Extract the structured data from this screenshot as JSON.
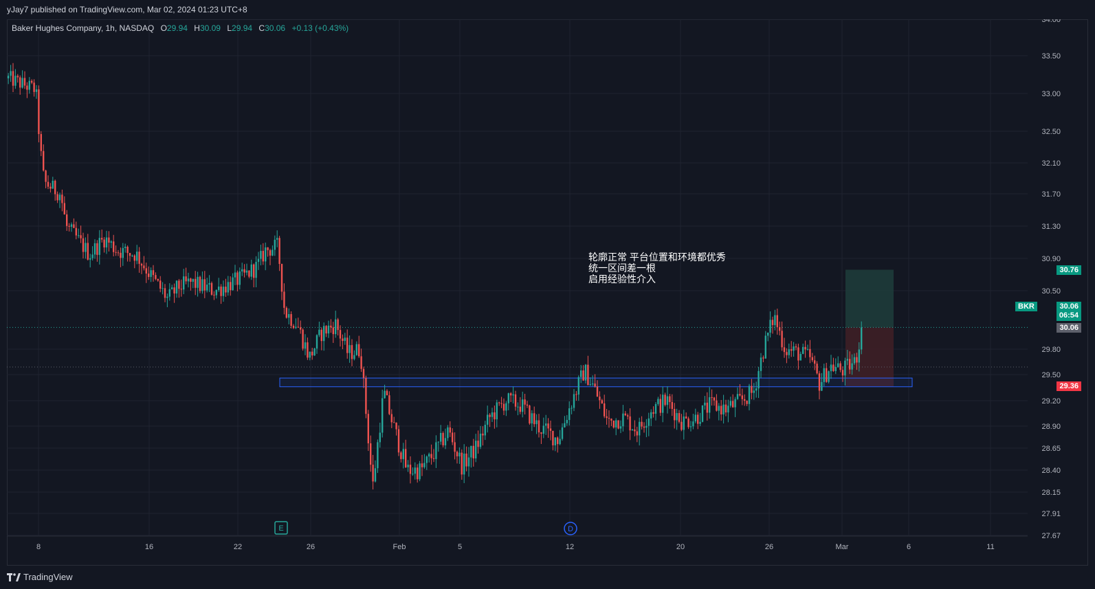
{
  "header": {
    "publisher": "yJay7 published on TradingView.com, Mar 02, 2024 01:23 UTC+8"
  },
  "legend": {
    "symbol": "Baker Hughes Company, 1h, NASDAQ",
    "o_label": "O",
    "o": "29.94",
    "h_label": "H",
    "h": "30.09",
    "l_label": "L",
    "l": "29.94",
    "c_label": "C",
    "c": "30.06",
    "change": "+0.13 (+0.43%)"
  },
  "annotation": {
    "lines": [
      "轮廓正常 平台位置和环境都优秀",
      "统一区间差一根",
      "启用经验性介入"
    ]
  },
  "price_tags": {
    "target": "30.76",
    "ticker": "BKR",
    "last": "30.06",
    "countdown": "06:54",
    "current_marker": "30.06",
    "stop": "29.36"
  },
  "events": {
    "earnings": "E",
    "dividend": "D"
  },
  "footer": {
    "brand": "TradingView"
  },
  "colors": {
    "background": "#131722",
    "up": "#26a69a",
    "down": "#ef5350",
    "zone_border": "#2962ff",
    "target_fill": "#1e3b3a",
    "stop_fill": "#3e1f26"
  },
  "chart_data": {
    "type": "candlestick",
    "y_ticks": [
      "34.00",
      "33.50",
      "33.00",
      "32.50",
      "32.10",
      "31.70",
      "31.30",
      "30.90",
      "30.50",
      "29.80",
      "29.50",
      "29.20",
      "28.90",
      "28.65",
      "28.40",
      "28.15",
      "27.91",
      "27.67"
    ],
    "x_ticks": [
      "8",
      "16",
      "22",
      "26",
      "Feb",
      "5",
      "12",
      "20",
      "26",
      "Mar",
      "6",
      "11"
    ],
    "ylim": [
      27.67,
      34.0
    ],
    "support_zone": {
      "low": 29.36,
      "high": 29.46
    },
    "position": {
      "entry": 30.06,
      "target": 30.76,
      "stop": 29.36
    },
    "anchors": [
      [
        0,
        33.2
      ],
      [
        40,
        33.05
      ],
      [
        46,
        32.3
      ],
      [
        52,
        31.85
      ],
      [
        76,
        31.7
      ],
      [
        84,
        31.3
      ],
      [
        104,
        31.1
      ],
      [
        118,
        30.95
      ],
      [
        140,
        31.15
      ],
      [
        158,
        31.0
      ],
      [
        186,
        30.95
      ],
      [
        206,
        30.7
      ],
      [
        232,
        30.4
      ],
      [
        248,
        30.55
      ],
      [
        266,
        30.6
      ],
      [
        300,
        30.5
      ],
      [
        338,
        30.65
      ],
      [
        362,
        30.8
      ],
      [
        374,
        31.0
      ],
      [
        392,
        31.05
      ],
      [
        402,
        30.25
      ],
      [
        420,
        30.1
      ],
      [
        438,
        29.7
      ],
      [
        456,
        30.0
      ],
      [
        476,
        30.1
      ],
      [
        494,
        29.75
      ],
      [
        512,
        29.8
      ],
      [
        530,
        28.2
      ],
      [
        546,
        29.3
      ],
      [
        562,
        28.85
      ],
      [
        580,
        28.4
      ],
      [
        600,
        28.4
      ],
      [
        620,
        28.6
      ],
      [
        640,
        28.85
      ],
      [
        660,
        28.45
      ],
      [
        680,
        28.65
      ],
      [
        700,
        29.0
      ],
      [
        724,
        29.2
      ],
      [
        746,
        29.15
      ],
      [
        770,
        28.9
      ],
      [
        800,
        28.75
      ],
      [
        820,
        29.2
      ],
      [
        838,
        29.55
      ],
      [
        852,
        29.35
      ],
      [
        872,
        28.95
      ],
      [
        896,
        29.0
      ],
      [
        916,
        28.85
      ],
      [
        936,
        29.1
      ],
      [
        958,
        29.2
      ],
      [
        980,
        28.95
      ],
      [
        1000,
        29.0
      ],
      [
        1022,
        29.15
      ],
      [
        1044,
        29.1
      ],
      [
        1066,
        29.2
      ],
      [
        1084,
        29.3
      ],
      [
        1100,
        29.85
      ],
      [
        1114,
        30.2
      ],
      [
        1130,
        29.8
      ],
      [
        1150,
        29.75
      ],
      [
        1166,
        29.7
      ],
      [
        1180,
        29.4
      ],
      [
        1196,
        29.6
      ],
      [
        1214,
        29.55
      ],
      [
        1232,
        29.65
      ],
      [
        1244,
        30.06
      ]
    ]
  }
}
